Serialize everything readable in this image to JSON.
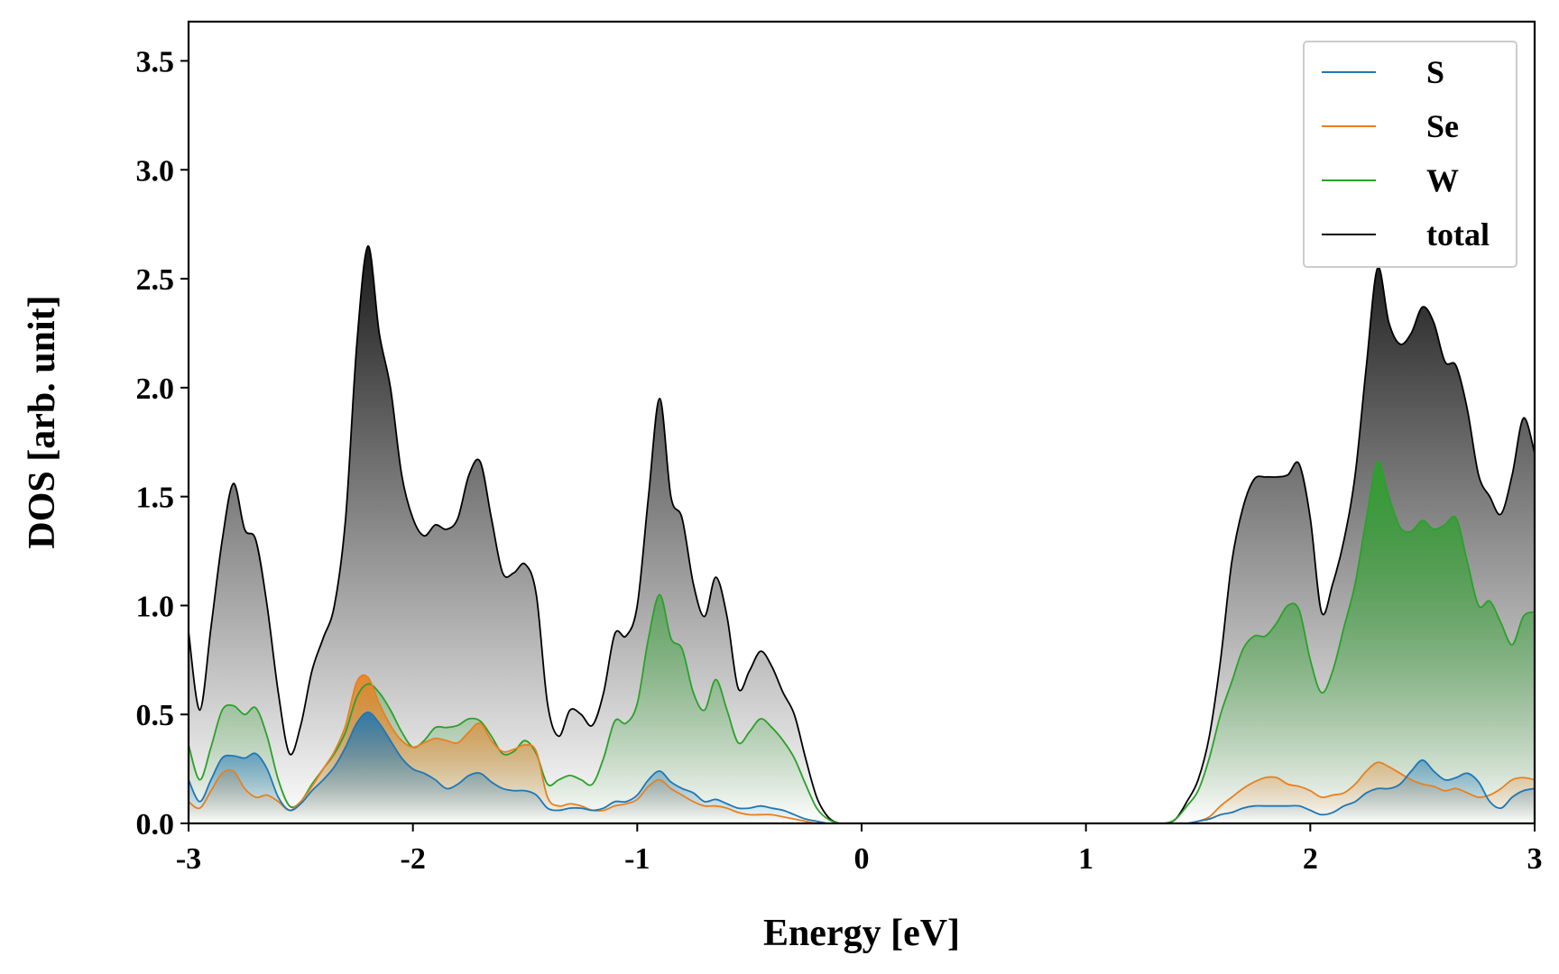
{
  "chart_data": {
    "type": "line",
    "xlabel": "Energy [eV]",
    "ylabel": "DOS [arb. unit]",
    "x": [
      -3.0,
      -2.95,
      -2.9,
      -2.85,
      -2.8,
      -2.75,
      -2.7,
      -2.65,
      -2.6,
      -2.55,
      -2.5,
      -2.45,
      -2.4,
      -2.35,
      -2.3,
      -2.25,
      -2.2,
      -2.15,
      -2.1,
      -2.05,
      -2.0,
      -1.95,
      -1.9,
      -1.85,
      -1.8,
      -1.75,
      -1.7,
      -1.65,
      -1.6,
      -1.55,
      -1.5,
      -1.45,
      -1.4,
      -1.35,
      -1.3,
      -1.25,
      -1.2,
      -1.15,
      -1.1,
      -1.05,
      -1.0,
      -0.95,
      -0.9,
      -0.85,
      -0.8,
      -0.75,
      -0.7,
      -0.65,
      -0.6,
      -0.55,
      -0.5,
      -0.45,
      -0.4,
      -0.35,
      -0.3,
      -0.25,
      -0.2,
      -0.15,
      -0.1,
      -0.05,
      0,
      0.5,
      1.0,
      1.3,
      1.35,
      1.4,
      1.45,
      1.5,
      1.55,
      1.6,
      1.65,
      1.7,
      1.75,
      1.8,
      1.85,
      1.9,
      1.95,
      2.0,
      2.05,
      2.1,
      2.15,
      2.2,
      2.25,
      2.3,
      2.35,
      2.4,
      2.45,
      2.5,
      2.55,
      2.6,
      2.65,
      2.7,
      2.75,
      2.8,
      2.85,
      2.9,
      2.95,
      3.0
    ],
    "series": [
      {
        "name": "S",
        "color": "#1f77b4",
        "values": [
          0.2,
          0.1,
          0.2,
          0.3,
          0.31,
          0.3,
          0.32,
          0.25,
          0.12,
          0.06,
          0.09,
          0.15,
          0.2,
          0.26,
          0.35,
          0.46,
          0.51,
          0.46,
          0.38,
          0.3,
          0.25,
          0.23,
          0.2,
          0.16,
          0.18,
          0.22,
          0.23,
          0.19,
          0.16,
          0.15,
          0.15,
          0.13,
          0.07,
          0.06,
          0.07,
          0.07,
          0.06,
          0.07,
          0.1,
          0.1,
          0.13,
          0.2,
          0.24,
          0.19,
          0.16,
          0.14,
          0.1,
          0.11,
          0.09,
          0.07,
          0.07,
          0.08,
          0.07,
          0.06,
          0.04,
          0.02,
          0.01,
          0,
          0,
          0,
          0,
          0,
          0,
          0,
          0,
          0,
          0,
          0.01,
          0.02,
          0.04,
          0.05,
          0.07,
          0.08,
          0.08,
          0.08,
          0.08,
          0.08,
          0.06,
          0.04,
          0.05,
          0.08,
          0.1,
          0.14,
          0.16,
          0.16,
          0.18,
          0.24,
          0.29,
          0.24,
          0.2,
          0.21,
          0.23,
          0.19,
          0.1,
          0.07,
          0.12,
          0.15,
          0.16
        ]
      },
      {
        "name": "Se",
        "color": "#e8801f",
        "values": [
          0.1,
          0.07,
          0.15,
          0.23,
          0.24,
          0.16,
          0.12,
          0.13,
          0.1,
          0.06,
          0.1,
          0.17,
          0.25,
          0.33,
          0.45,
          0.65,
          0.67,
          0.55,
          0.45,
          0.38,
          0.35,
          0.37,
          0.39,
          0.38,
          0.37,
          0.42,
          0.46,
          0.38,
          0.33,
          0.34,
          0.36,
          0.33,
          0.12,
          0.08,
          0.09,
          0.08,
          0.06,
          0.06,
          0.08,
          0.09,
          0.11,
          0.17,
          0.2,
          0.16,
          0.13,
          0.1,
          0.08,
          0.08,
          0.07,
          0.05,
          0.04,
          0.04,
          0.04,
          0.03,
          0.02,
          0.01,
          0,
          0,
          0,
          0,
          0,
          0,
          0,
          0,
          0,
          0,
          0,
          0.01,
          0.03,
          0.08,
          0.12,
          0.16,
          0.19,
          0.21,
          0.21,
          0.18,
          0.17,
          0.15,
          0.12,
          0.13,
          0.14,
          0.18,
          0.24,
          0.28,
          0.26,
          0.23,
          0.2,
          0.18,
          0.17,
          0.15,
          0.16,
          0.14,
          0.12,
          0.13,
          0.16,
          0.2,
          0.21,
          0.2
        ]
      },
      {
        "name": "W",
        "color": "#2ca02c",
        "values": [
          0.36,
          0.2,
          0.35,
          0.52,
          0.54,
          0.5,
          0.53,
          0.4,
          0.2,
          0.08,
          0.1,
          0.18,
          0.25,
          0.32,
          0.42,
          0.58,
          0.64,
          0.6,
          0.52,
          0.42,
          0.35,
          0.38,
          0.44,
          0.44,
          0.45,
          0.48,
          0.47,
          0.4,
          0.32,
          0.33,
          0.38,
          0.32,
          0.18,
          0.2,
          0.22,
          0.2,
          0.18,
          0.3,
          0.47,
          0.46,
          0.55,
          0.85,
          1.05,
          0.85,
          0.8,
          0.6,
          0.52,
          0.66,
          0.52,
          0.37,
          0.42,
          0.48,
          0.44,
          0.38,
          0.3,
          0.18,
          0.07,
          0.02,
          0,
          0,
          0,
          0,
          0,
          0,
          0,
          0.02,
          0.08,
          0.15,
          0.3,
          0.5,
          0.65,
          0.8,
          0.86,
          0.86,
          0.92,
          1.0,
          0.98,
          0.75,
          0.6,
          0.7,
          0.9,
          1.1,
          1.4,
          1.66,
          1.5,
          1.36,
          1.34,
          1.39,
          1.35,
          1.37,
          1.4,
          1.2,
          1.0,
          1.02,
          0.92,
          0.82,
          0.95,
          0.97
        ]
      },
      {
        "name": "total",
        "color": "#000000",
        "values": [
          0.88,
          0.52,
          0.9,
          1.3,
          1.56,
          1.35,
          1.3,
          1.0,
          0.6,
          0.32,
          0.45,
          0.7,
          0.85,
          1.0,
          1.4,
          2.2,
          2.65,
          2.25,
          2.0,
          1.6,
          1.4,
          1.32,
          1.37,
          1.35,
          1.4,
          1.6,
          1.66,
          1.4,
          1.15,
          1.15,
          1.19,
          1.05,
          0.55,
          0.4,
          0.52,
          0.5,
          0.45,
          0.6,
          0.87,
          0.86,
          1.0,
          1.5,
          1.95,
          1.5,
          1.4,
          1.1,
          0.95,
          1.13,
          0.95,
          0.62,
          0.7,
          0.79,
          0.72,
          0.6,
          0.5,
          0.3,
          0.12,
          0.03,
          0,
          0,
          0,
          0,
          0,
          0,
          0,
          0.02,
          0.1,
          0.2,
          0.4,
          0.75,
          1.2,
          1.45,
          1.58,
          1.59,
          1.59,
          1.6,
          1.65,
          1.4,
          0.97,
          1.1,
          1.3,
          1.6,
          2.1,
          2.55,
          2.3,
          2.2,
          2.25,
          2.37,
          2.3,
          2.12,
          2.1,
          1.9,
          1.6,
          1.5,
          1.42,
          1.6,
          1.86,
          1.7
        ]
      }
    ],
    "xlim": [
      -3,
      3
    ],
    "xticks": [
      -3,
      -2,
      -1,
      0,
      1,
      2,
      3
    ],
    "ylim": [
      0,
      3.68
    ],
    "yticks": [
      {
        "value": 0,
        "label": "0.0"
      },
      0.5,
      {
        "value": 1,
        "label": "1.0"
      },
      1.5,
      {
        "value": 2,
        "label": "2.0"
      },
      2.5,
      {
        "value": 3,
        "label": "3.0"
      },
      3.5
    ],
    "fill": true,
    "legend": "upper right"
  }
}
